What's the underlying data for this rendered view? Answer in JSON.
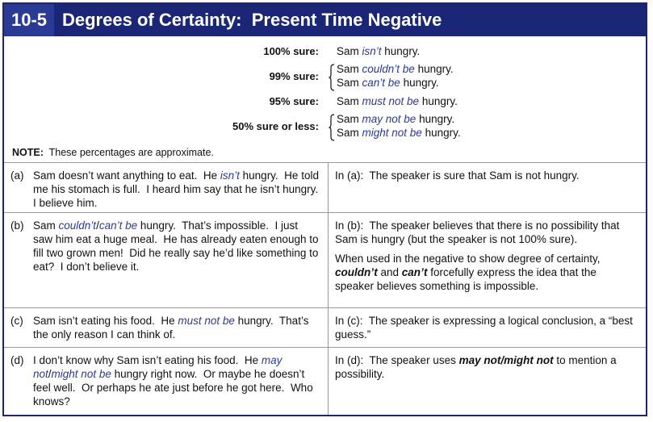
{
  "header": {
    "number": "10-5",
    "title": "Degrees of Certainty:  Present Time Negative"
  },
  "summary": {
    "rows": [
      {
        "label": "100% sure:",
        "lines": [
          [
            "Sam ",
            "isn’t",
            " hungry."
          ]
        ]
      },
      {
        "label": "99% sure:",
        "lines": [
          [
            "Sam ",
            "couldn’t be",
            " hungry."
          ],
          [
            "Sam ",
            "can’t be",
            " hungry."
          ]
        ]
      },
      {
        "label": "95% sure:",
        "lines": [
          [
            "Sam ",
            "must not be",
            " hungry."
          ]
        ]
      },
      {
        "label": "50% sure or less:",
        "lines": [
          [
            "Sam ",
            "may not be",
            " hungry."
          ],
          [
            "Sam ",
            "might not be",
            " hungry."
          ]
        ]
      }
    ],
    "note": [
      "NOTE:",
      "  These percentages are approximate."
    ]
  },
  "examples": [
    {
      "label": "(a)",
      "text": [
        "Sam doesn’t want anything to eat.  He ",
        "isn’t",
        " hungry.  He told me his stomach is full.  I heard him say that he isn’t hungry.  I believe him."
      ],
      "explanation": [
        [
          "In (a):  The speaker is sure that Sam is not hungry."
        ]
      ]
    },
    {
      "label": "(b)",
      "text": [
        "Sam ",
        "couldn’t",
        "/",
        "can’t be",
        " hungry.  That’s impossible.  I just saw him eat a huge meal.  He has already eaten enough to fill two grown men!  Did he really say he’d like something to eat?  I don’t believe it."
      ],
      "explanation": [
        [
          "In (b):  The speaker believes that there is no possibility that Sam is hungry (but the speaker is not 100% sure)."
        ],
        [
          "When used in the negative to show degree of certainty, ",
          "couldn’t",
          " and ",
          "can’t",
          " forcefully express the idea that the speaker believes something is impossible."
        ]
      ]
    },
    {
      "label": "(c)",
      "text": [
        "Sam isn’t eating his food.  He ",
        "must not be",
        " hungry.  That’s the only reason I can think of."
      ],
      "explanation": [
        [
          "In (c):  The speaker is expressing a logical conclusion, a “best guess.”"
        ]
      ]
    },
    {
      "label": "(d)",
      "text": [
        "I don’t know why Sam isn’t eating his food.  He ",
        "may not",
        "/",
        "might not be",
        " hungry right now.  Or maybe he doesn’t feel well.  Or perhaps he ate just before he got here.  Who knows?"
      ],
      "explanation": [
        [
          "In (d):  The speaker uses ",
          "may not/might not",
          " to mention a possibility."
        ]
      ]
    }
  ]
}
